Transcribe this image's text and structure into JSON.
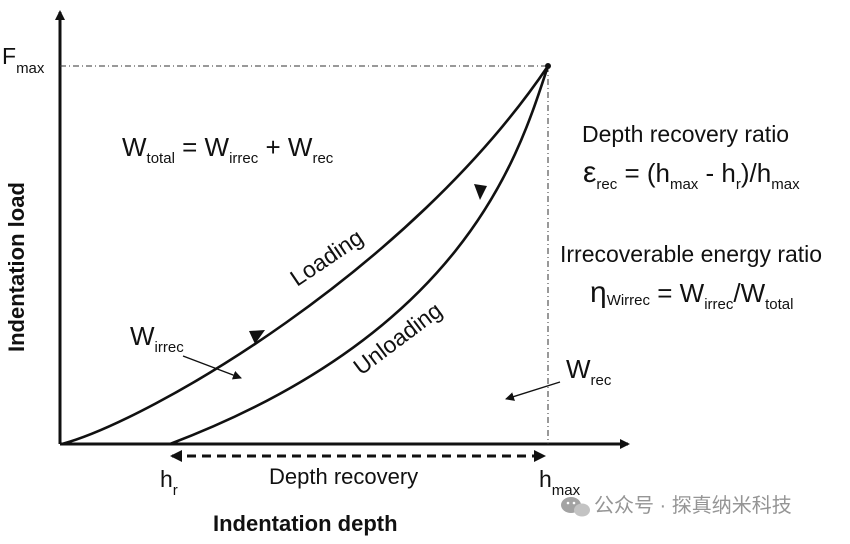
{
  "axes": {
    "x_title": "Indentation depth",
    "y_title": "Indentation load",
    "y_marker": {
      "base": "F",
      "sub": "max"
    },
    "x_marker_r": {
      "base": "h",
      "sub": "r"
    },
    "x_marker_max": {
      "base": "h",
      "sub": "max"
    }
  },
  "curves": {
    "loading_label": "Loading",
    "unloading_label": "Unloading"
  },
  "labels": {
    "w_irrec": {
      "base": "W",
      "sub": "irrec"
    },
    "w_rec": {
      "base": "W",
      "sub": "rec"
    },
    "depth_recovery": "Depth recovery"
  },
  "equations": {
    "total": {
      "w": "W",
      "total_sub": "total",
      "eq": " = ",
      "w2": "W",
      "irrec_sub": "irrec",
      "plus": " + ",
      "w3": "W",
      "rec_sub": "rec"
    },
    "depth_ratio_title": "Depth recovery ratio",
    "depth_ratio": {
      "eps": "ε",
      "rec_sub": "rec",
      "eq_open": " = (h",
      "max_sub": "max",
      "minus": " - h",
      "r_sub": "r",
      "close_div": ")/h",
      "max_sub2": "max"
    },
    "energy_ratio_title": "Irrecoverable energy ratio",
    "energy_ratio": {
      "eta": "η",
      "eta_sub": "Wirrec",
      "eq": " = W",
      "irrec_sub": "irrec",
      "div": "/W",
      "total_sub": "total"
    }
  },
  "watermark": "公众号 · 探真纳米科技",
  "colors": {
    "ink": "#111111",
    "watermark": "#8a8a8a"
  }
}
